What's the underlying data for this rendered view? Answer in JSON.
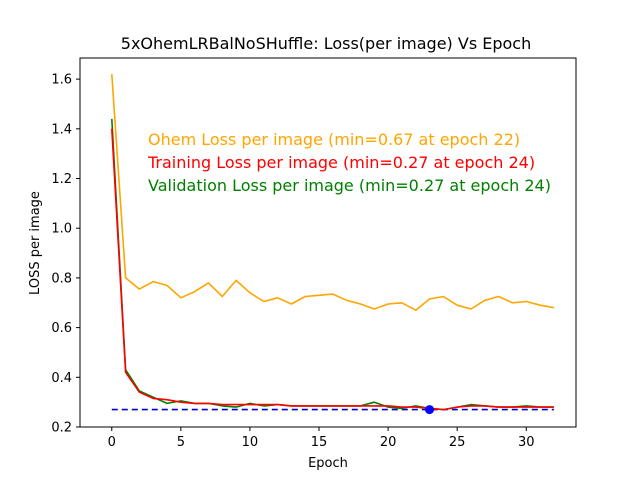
{
  "chart_data": {
    "type": "line",
    "title": "5xOhemLRBalNoSHuffle:  Loss(per image) Vs Epoch",
    "xlabel": "Epoch",
    "ylabel": "LOSS per image",
    "xlim": [
      -2.3,
      33.6
    ],
    "ylim": [
      0.2,
      1.685
    ],
    "xticks": [
      0,
      5,
      10,
      15,
      20,
      25,
      30
    ],
    "yticks": [
      0.2,
      0.4,
      0.6,
      0.8,
      1.0,
      1.2,
      1.4,
      1.6
    ],
    "x": [
      0,
      1,
      2,
      3,
      4,
      5,
      6,
      7,
      8,
      9,
      10,
      11,
      12,
      13,
      14,
      15,
      16,
      17,
      18,
      19,
      20,
      21,
      22,
      23,
      24,
      25,
      26,
      27,
      28,
      29,
      30,
      31,
      32
    ],
    "series": [
      {
        "key": "ohem",
        "color": "#ffa500",
        "values": [
          1.62,
          0.8,
          0.755,
          0.785,
          0.77,
          0.72,
          0.745,
          0.78,
          0.725,
          0.79,
          0.74,
          0.705,
          0.72,
          0.695,
          0.725,
          0.73,
          0.735,
          0.71,
          0.695,
          0.675,
          0.695,
          0.7,
          0.67,
          0.715,
          0.725,
          0.69,
          0.675,
          0.71,
          0.725,
          0.7,
          0.705,
          0.69,
          0.68
        ]
      },
      {
        "key": "validation",
        "color": "#008000",
        "values": [
          1.44,
          0.43,
          0.345,
          0.32,
          0.295,
          0.305,
          0.295,
          0.295,
          0.285,
          0.28,
          0.295,
          0.285,
          0.29,
          0.285,
          0.285,
          0.285,
          0.285,
          0.285,
          0.285,
          0.3,
          0.28,
          0.275,
          0.285,
          0.275,
          0.27,
          0.28,
          0.29,
          0.285,
          0.28,
          0.28,
          0.285,
          0.28,
          0.28
        ]
      },
      {
        "key": "training",
        "color": "#ff0000",
        "values": [
          1.4,
          0.42,
          0.34,
          0.315,
          0.31,
          0.3,
          0.295,
          0.295,
          0.29,
          0.29,
          0.29,
          0.29,
          0.29,
          0.285,
          0.285,
          0.285,
          0.285,
          0.285,
          0.285,
          0.285,
          0.285,
          0.28,
          0.28,
          0.275,
          0.27,
          0.28,
          0.285,
          0.285,
          0.28,
          0.28,
          0.28,
          0.28,
          0.28
        ]
      }
    ],
    "reference_line": {
      "y": 0.27,
      "style": "dashed",
      "color": "#0000cc",
      "x_range": [
        0,
        32
      ]
    },
    "marker": {
      "x": 23,
      "y": 0.27,
      "color": "#0000ff"
    },
    "annotations": [
      {
        "text": "Ohem Loss per image (min=0.67 at epoch 22)",
        "color": "#ffa500"
      },
      {
        "text": "Training Loss per image (min=0.27 at epoch 24)",
        "color": "#ff0000"
      },
      {
        "text": "Validation Loss per image (min=0.27 at epoch 24)",
        "color": "#008000"
      }
    ]
  }
}
